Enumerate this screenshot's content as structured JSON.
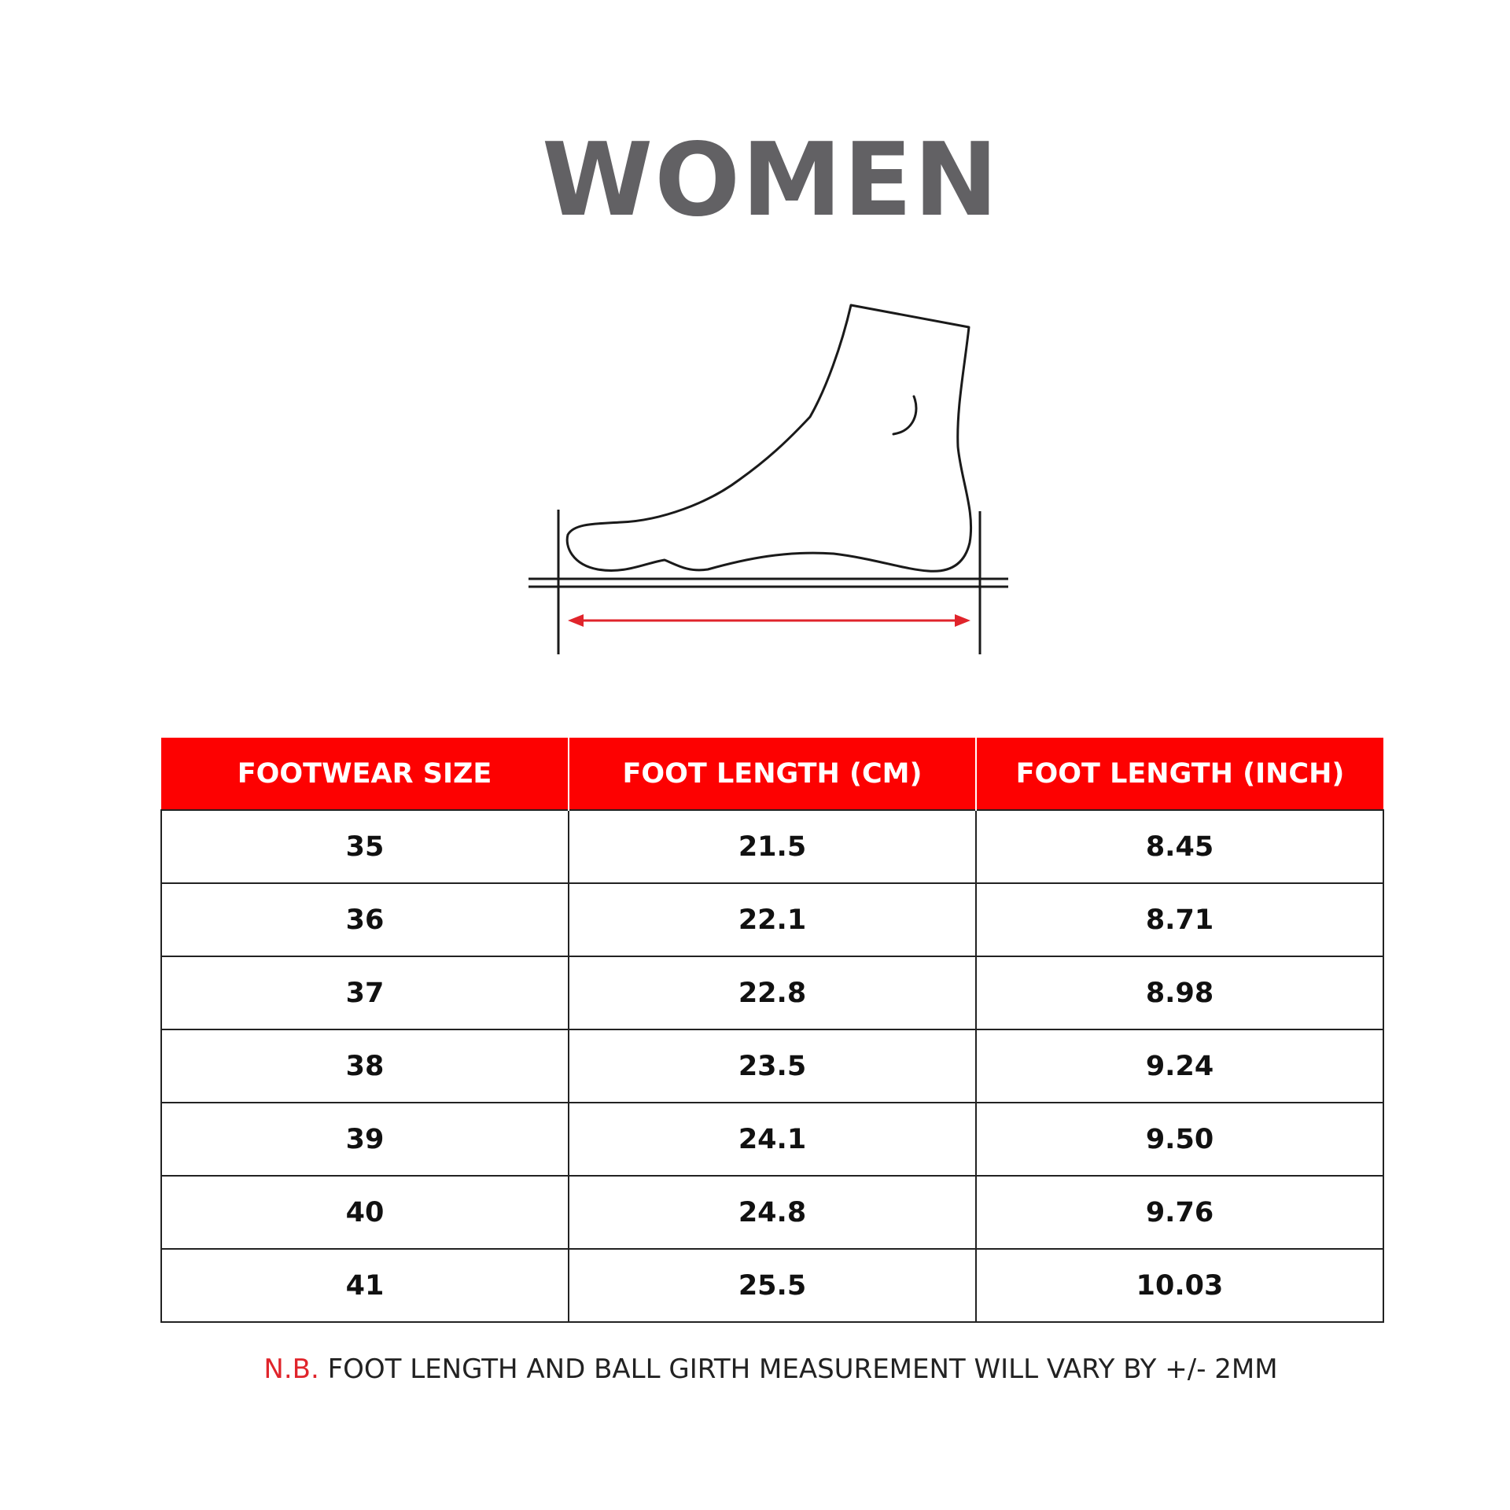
{
  "title": "WOMEN",
  "figure": {
    "icon": "foot-measurement-icon",
    "outline_color": "#1a1a1a",
    "arrow_color": "#e0242b"
  },
  "table": {
    "header_bg": "#fd0101",
    "headers": [
      "FOOTWEAR SIZE",
      "FOOT LENGTH (CM)",
      "FOOT LENGTH (INCH)"
    ],
    "rows": [
      [
        "35",
        "21.5",
        "8.45"
      ],
      [
        "36",
        "22.1",
        "8.71"
      ],
      [
        "37",
        "22.8",
        "8.98"
      ],
      [
        "38",
        "23.5",
        "9.24"
      ],
      [
        "39",
        "24.1",
        "9.50"
      ],
      [
        "40",
        "24.8",
        "9.76"
      ],
      [
        "41",
        "25.5",
        "10.03"
      ]
    ]
  },
  "note": {
    "prefix": "N.B.",
    "text": " FOOT LENGTH AND BALL GIRTH MEASUREMENT WILL VARY BY +/- 2MM",
    "prefix_color": "#e0242b"
  }
}
